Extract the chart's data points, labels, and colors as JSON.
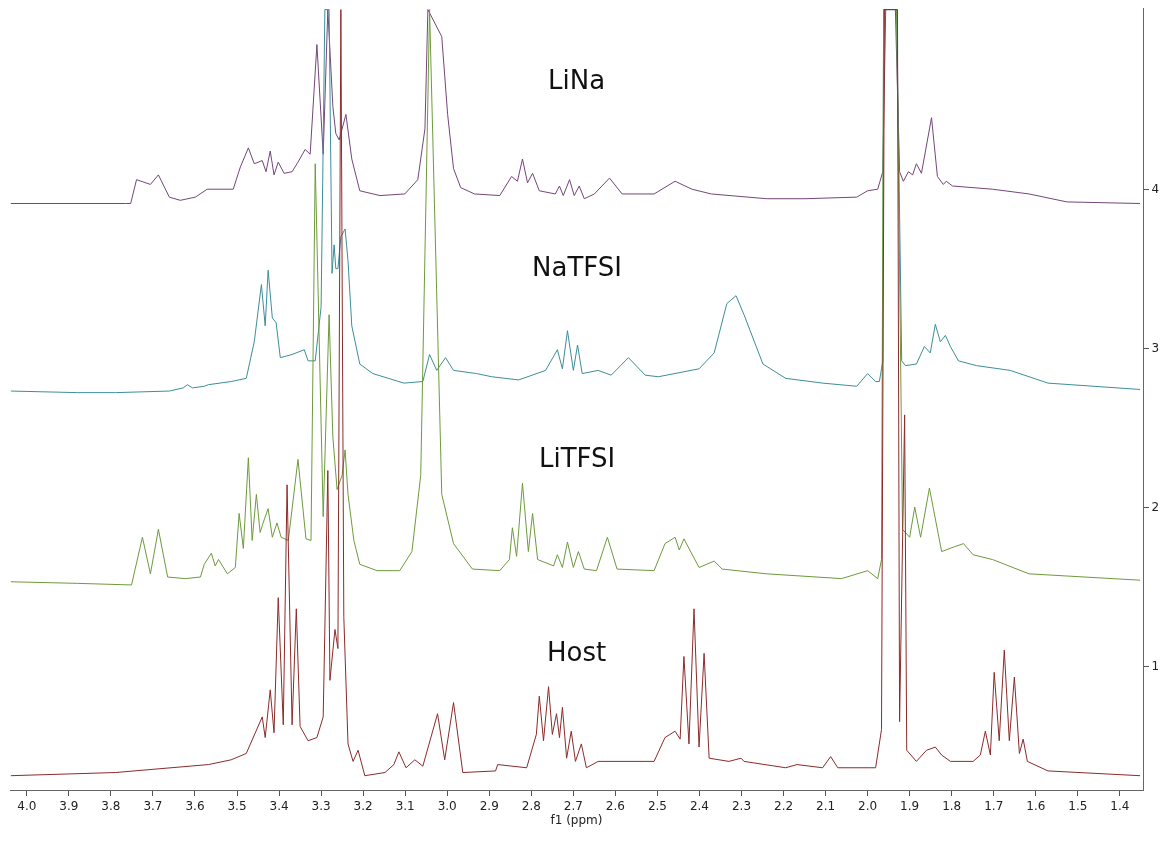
{
  "chart_data": {
    "type": "line",
    "xlabel": "f1 (ppm)",
    "xlim": [
      4.04,
      1.345
    ],
    "xticks": [
      {
        "value": 4,
        "label": "4.0"
      },
      3.9,
      3.8,
      3.7,
      3.6,
      3.5,
      3.4,
      3.3,
      3.2,
      3.1,
      {
        "value": 3,
        "label": "3.0"
      },
      2.9,
      2.8,
      2.7,
      2.6,
      2.5,
      2.4,
      2.3,
      2.2,
      2.1,
      {
        "value": 2,
        "label": "2.0"
      },
      1.9,
      1.8,
      1.7,
      1.6,
      1.5,
      1.4
    ],
    "ylim": [
      0.22,
      5.14
    ],
    "yticks": [
      1,
      2,
      3,
      4
    ],
    "series": [
      {
        "name": "LiNa",
        "color": "#74467a",
        "x": [
          4.038,
          3.765,
          3.753,
          3.739,
          3.706,
          3.687,
          3.661,
          3.635,
          3.599,
          3.571,
          3.509,
          3.492,
          3.473,
          3.459,
          3.44,
          3.431,
          3.421,
          3.412,
          3.402,
          3.388,
          3.369,
          3.355,
          3.338,
          3.326,
          3.31,
          3.295,
          3.284,
          3.272,
          3.265,
          3.257,
          3.241,
          3.227,
          3.208,
          3.16,
          3.101,
          3.07,
          3.053,
          3.046,
          3.013,
          2.999,
          2.985,
          2.968,
          2.935,
          2.875,
          2.847,
          2.833,
          2.821,
          2.809,
          2.797,
          2.781,
          2.743,
          2.733,
          2.724,
          2.709,
          2.698,
          2.686,
          2.674,
          2.65,
          2.614,
          2.584,
          2.508,
          2.458,
          2.418,
          2.372,
          2.24,
          2.149,
          2.026,
          2.0,
          1.976,
          1.964,
          1.957,
          1.934,
          1.924,
          1.915,
          1.903,
          1.893,
          1.884,
          1.872,
          1.848,
          1.834,
          1.82,
          1.813,
          1.798,
          1.703,
          1.616,
          1.526,
          1.352
        ],
        "values": [
          3.91,
          3.91,
          3.91,
          4.06,
          4.03,
          4.09,
          3.95,
          3.93,
          3.95,
          4.0,
          4.0,
          4.14,
          4.26,
          4.16,
          4.18,
          4.11,
          4.24,
          4.09,
          4.17,
          4.1,
          4.11,
          4.17,
          4.25,
          4.22,
          4.91,
          4.22,
          5.13,
          4.52,
          4.35,
          4.31,
          4.47,
          4.19,
          3.99,
          3.96,
          3.97,
          4.06,
          4.38,
          5.13,
          4.96,
          4.47,
          4.13,
          4.01,
          3.97,
          3.96,
          4.08,
          4.05,
          4.19,
          4.04,
          4.1,
          3.99,
          3.97,
          4.02,
          3.96,
          4.06,
          3.96,
          4.02,
          3.94,
          3.97,
          4.07,
          3.97,
          3.97,
          4.05,
          4.0,
          3.97,
          3.94,
          3.94,
          3.95,
          3.99,
          4.0,
          4.11,
          5.13,
          5.13,
          4.11,
          4.05,
          4.11,
          4.09,
          4.16,
          4.1,
          4.45,
          4.08,
          4.03,
          4.05,
          4.02,
          4.0,
          3.97,
          3.92,
          3.91
        ]
      },
      {
        "name": "NaTFSI",
        "color": "#3e8e98",
        "x": [
          4.038,
          3.879,
          3.789,
          3.661,
          3.628,
          3.618,
          3.606,
          3.578,
          3.568,
          3.514,
          3.478,
          3.459,
          3.442,
          3.433,
          3.426,
          3.416,
          3.407,
          3.397,
          3.369,
          3.34,
          3.331,
          3.314,
          3.3,
          3.291,
          3.281,
          3.274,
          3.269,
          3.265,
          3.26,
          3.253,
          3.243,
          3.236,
          3.227,
          3.208,
          3.177,
          3.103,
          3.058,
          3.042,
          3.025,
          3.004,
          2.985,
          2.93,
          2.894,
          2.83,
          2.766,
          2.738,
          2.726,
          2.714,
          2.7,
          2.69,
          2.679,
          2.641,
          2.61,
          2.569,
          2.529,
          2.498,
          2.401,
          2.365,
          2.335,
          2.313,
          2.294,
          2.249,
          2.195,
          2.107,
          2.026,
          2.0,
          1.981,
          1.972,
          1.964,
          1.962,
          1.931,
          1.919,
          1.91,
          1.884,
          1.865,
          1.851,
          1.839,
          1.827,
          1.815,
          1.803,
          1.784,
          1.741,
          1.661,
          1.571,
          1.352
        ],
        "values": [
          2.73,
          2.72,
          2.72,
          2.73,
          2.75,
          2.77,
          2.75,
          2.76,
          2.77,
          2.79,
          2.81,
          3.04,
          3.4,
          3.14,
          3.49,
          3.19,
          3.16,
          2.94,
          2.96,
          2.99,
          2.92,
          2.92,
          3.26,
          5.13,
          5.13,
          3.47,
          3.65,
          3.5,
          3.5,
          3.7,
          3.75,
          3.55,
          3.14,
          2.9,
          2.84,
          2.78,
          2.79,
          2.96,
          2.86,
          2.94,
          2.86,
          2.84,
          2.82,
          2.8,
          2.86,
          2.99,
          2.87,
          3.11,
          2.86,
          3.02,
          2.84,
          2.86,
          2.83,
          2.94,
          2.83,
          2.82,
          2.87,
          2.97,
          3.28,
          3.33,
          3.21,
          2.9,
          2.81,
          2.78,
          2.76,
          2.84,
          2.79,
          2.79,
          2.92,
          5.13,
          5.13,
          2.92,
          2.89,
          2.9,
          3.01,
          2.97,
          3.15,
          3.04,
          3.08,
          3.01,
          2.92,
          2.89,
          2.86,
          2.78,
          2.74
        ]
      },
      {
        "name": "LiTFSI",
        "color": "#6e9a3c",
        "x": [
          4.038,
          3.879,
          3.751,
          3.725,
          3.706,
          3.687,
          3.665,
          3.623,
          3.587,
          3.578,
          3.561,
          3.552,
          3.544,
          3.523,
          3.504,
          3.495,
          3.485,
          3.473,
          3.464,
          3.454,
          3.445,
          3.438,
          3.426,
          3.416,
          3.405,
          3.395,
          3.378,
          3.355,
          3.336,
          3.324,
          3.314,
          3.295,
          3.281,
          3.272,
          3.262,
          3.25,
          3.243,
          3.236,
          3.222,
          3.208,
          3.167,
          3.113,
          3.084,
          3.063,
          3.042,
          3.013,
          2.985,
          2.94,
          2.875,
          2.852,
          2.845,
          2.835,
          2.821,
          2.807,
          2.797,
          2.785,
          2.747,
          2.738,
          2.726,
          2.714,
          2.7,
          2.688,
          2.674,
          2.645,
          2.619,
          2.596,
          2.508,
          2.482,
          2.458,
          2.448,
          2.437,
          2.401,
          2.365,
          2.346,
          2.24,
          2.062,
          2.0,
          1.976,
          1.967,
          1.962,
          1.931,
          1.917,
          1.9,
          1.888,
          1.874,
          1.853,
          1.824,
          1.794,
          1.772,
          1.749,
          1.703,
          1.616,
          1.352
        ],
        "values": [
          1.53,
          1.52,
          1.51,
          1.81,
          1.58,
          1.86,
          1.56,
          1.55,
          1.56,
          1.64,
          1.71,
          1.63,
          1.67,
          1.58,
          1.62,
          1.96,
          1.74,
          2.31,
          1.79,
          2.08,
          1.84,
          1.9,
          1.99,
          1.81,
          1.9,
          1.81,
          1.79,
          2.3,
          1.8,
          1.79,
          4.16,
          1.94,
          3.21,
          2.44,
          2.11,
          2.2,
          2.36,
          2.08,
          1.79,
          1.64,
          1.6,
          1.6,
          1.72,
          2.2,
          5.13,
          2.08,
          1.77,
          1.61,
          1.6,
          1.67,
          1.87,
          1.69,
          2.15,
          1.72,
          1.96,
          1.67,
          1.63,
          1.7,
          1.62,
          1.78,
          1.62,
          1.72,
          1.61,
          1.6,
          1.81,
          1.61,
          1.6,
          1.77,
          1.81,
          1.73,
          1.8,
          1.62,
          1.66,
          1.61,
          1.58,
          1.55,
          1.6,
          1.55,
          1.67,
          5.13,
          5.13,
          1.86,
          1.81,
          2.0,
          1.81,
          2.12,
          1.72,
          1.75,
          1.77,
          1.7,
          1.67,
          1.58,
          1.54
        ]
      },
      {
        "name": "Host",
        "color": "#8c2b2b",
        "x": [
          4.038,
          3.789,
          3.568,
          3.514,
          3.478,
          3.44,
          3.433,
          3.421,
          3.412,
          3.402,
          3.39,
          3.381,
          3.369,
          3.359,
          3.35,
          3.331,
          3.31,
          3.295,
          3.284,
          3.279,
          3.267,
          3.26,
          3.253,
          3.246,
          3.236,
          3.224,
          3.212,
          3.196,
          3.148,
          3.127,
          3.115,
          3.098,
          3.077,
          3.058,
          3.023,
          3.006,
          2.985,
          2.963,
          2.885,
          2.88,
          2.811,
          2.788,
          2.781,
          2.771,
          2.759,
          2.75,
          2.74,
          2.733,
          2.726,
          2.716,
          2.705,
          2.695,
          2.681,
          2.669,
          2.641,
          2.508,
          2.482,
          2.458,
          2.446,
          2.437,
          2.425,
          2.413,
          2.401,
          2.389,
          2.377,
          2.33,
          2.301,
          2.294,
          2.195,
          2.168,
          2.107,
          2.088,
          2.071,
          1.981,
          1.967,
          1.96,
          1.929,
          1.924,
          1.912,
          1.907,
          1.884,
          1.86,
          1.839,
          1.824,
          1.803,
          1.749,
          1.732,
          1.72,
          1.708,
          1.699,
          1.687,
          1.675,
          1.663,
          1.651,
          1.639,
          1.63,
          1.62,
          1.571,
          1.352
        ],
        "values": [
          0.31,
          0.33,
          0.38,
          0.41,
          0.45,
          0.68,
          0.55,
          0.85,
          0.58,
          1.43,
          0.63,
          2.14,
          0.63,
          1.36,
          0.62,
          0.53,
          0.55,
          0.68,
          2.23,
          0.91,
          1.23,
          1.11,
          5.13,
          1.31,
          0.51,
          0.4,
          0.47,
          0.31,
          0.33,
          0.38,
          0.46,
          0.36,
          0.41,
          0.37,
          0.7,
          0.41,
          0.77,
          0.33,
          0.34,
          0.38,
          0.36,
          0.57,
          0.81,
          0.53,
          0.87,
          0.57,
          0.7,
          0.55,
          0.74,
          0.42,
          0.59,
          0.4,
          0.51,
          0.36,
          0.4,
          0.4,
          0.55,
          0.59,
          0.54,
          1.06,
          0.51,
          1.36,
          0.49,
          1.08,
          0.42,
          0.4,
          0.42,
          0.4,
          0.36,
          0.38,
          0.36,
          0.43,
          0.36,
          0.36,
          0.6,
          5.13,
          5.13,
          0.65,
          2.58,
          0.47,
          0.4,
          0.47,
          0.49,
          0.44,
          0.4,
          0.4,
          0.44,
          0.59,
          0.44,
          0.96,
          0.53,
          1.1,
          0.53,
          0.93,
          0.45,
          0.54,
          0.4,
          0.34,
          0.31
        ]
      }
    ]
  }
}
